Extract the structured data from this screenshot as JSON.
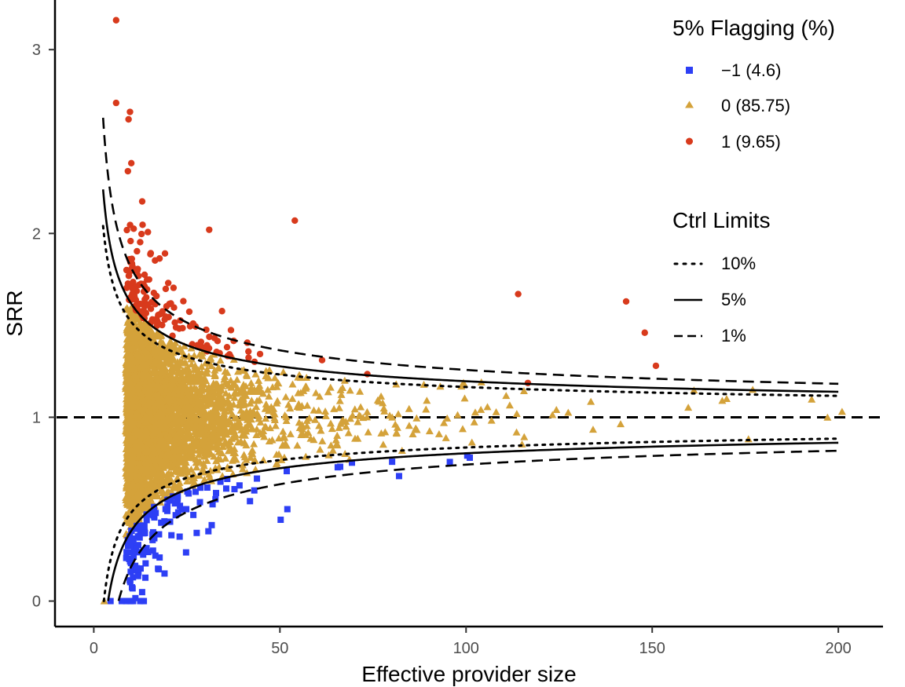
{
  "chart_data": {
    "type": "scatter",
    "xlabel": "Effective provider size",
    "ylabel": "SRR",
    "xlim": [
      -10,
      212
    ],
    "ylim": [
      -0.13,
      3.27
    ],
    "x_ticks": [
      "0",
      "50",
      "100",
      "150",
      "200"
    ],
    "y_ticks": [
      "0",
      "1",
      "2",
      "3"
    ],
    "grid": false,
    "reference_line": {
      "y": 1,
      "style": "dashed"
    },
    "legend_placement": "top-right",
    "legend_flagging": {
      "title": "5% Flagging (%)",
      "items": [
        {
          "label": "−1 (4.6)",
          "shape": "square",
          "color": "#2d3ff5"
        },
        {
          "label": "0 (85.75)",
          "shape": "triangle",
          "color": "#d4a23a"
        },
        {
          "label": "1 (9.65)",
          "shape": "circle",
          "color": "#d83a1c"
        }
      ]
    },
    "legend_limits": {
      "title": "Ctrl Limits",
      "items": [
        {
          "label": "10%",
          "dash": "dotted",
          "z": 1.645
        },
        {
          "label": "5%",
          "dash": "solid",
          "z": 1.96
        },
        {
          "label": "1%",
          "dash": "dashed",
          "z": 2.576
        }
      ]
    },
    "control_limit_x_range": [
      2.5,
      200
    ],
    "flag_counts_percent": {
      "minus1": 4.6,
      "zero": 85.75,
      "one": 9.65
    },
    "notable_points": [
      {
        "x": 6,
        "y": 3.16,
        "flag": 1
      },
      {
        "x": 6,
        "y": 2.71,
        "flag": 1
      },
      {
        "x": 54,
        "y": 2.07,
        "flag": 1
      },
      {
        "x": 31,
        "y": 2.02,
        "flag": 1
      },
      {
        "x": 143,
        "y": 1.63,
        "flag": 1
      },
      {
        "x": 114,
        "y": 1.67,
        "flag": 1
      },
      {
        "x": 151,
        "y": 1.28,
        "flag": 1
      },
      {
        "x": 148,
        "y": 1.46,
        "flag": 1
      },
      {
        "x": 201,
        "y": 1.03,
        "flag": 0
      },
      {
        "x": 170,
        "y": 1.1,
        "flag": 0
      },
      {
        "x": 177,
        "y": 1.15,
        "flag": 0
      },
      {
        "x": 101,
        "y": 0.78,
        "flag": -1
      },
      {
        "x": 52,
        "y": 0.5,
        "flag": -1
      },
      {
        "x": 19,
        "y": 0.15,
        "flag": -1
      },
      {
        "x": 82,
        "y": 0.68,
        "flag": -1
      },
      {
        "x": 4.5,
        "y": 0,
        "flag": -1
      },
      {
        "x": 7.5,
        "y": 0,
        "flag": -1
      },
      {
        "x": 2.8,
        "y": 0,
        "flag": 0
      }
    ]
  }
}
